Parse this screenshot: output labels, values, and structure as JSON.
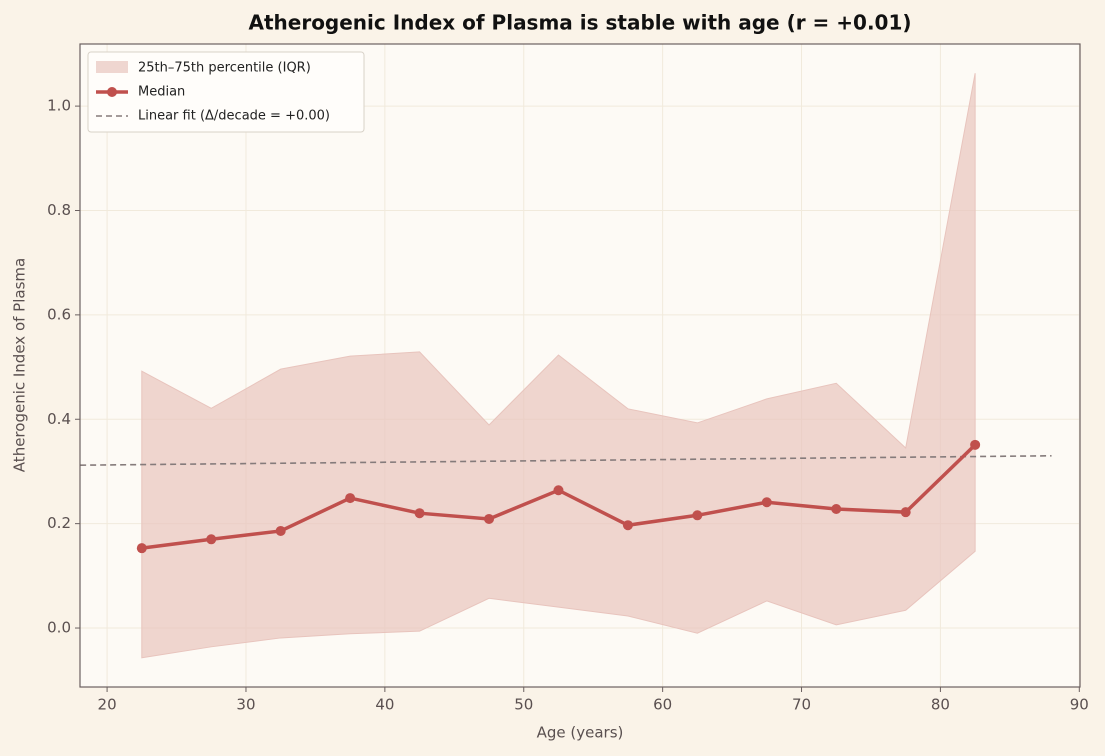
{
  "chart_data": {
    "type": "line",
    "title": "Atherogenic Index of Plasma is stable with age (r = +0.01)",
    "x_label": "Age (years)",
    "y_label": "Atherogenic Index of Plasma",
    "x": [
      22.5,
      27.5,
      32.5,
      37.5,
      42.5,
      47.5,
      52.5,
      57.5,
      62.5,
      67.5,
      72.5,
      77.5,
      82.5
    ],
    "band": {
      "name": "25th–75th percentile (IQR)",
      "color": "#e8c4bd",
      "lower": [
        -0.057,
        -0.036,
        -0.019,
        -0.011,
        -0.006,
        0.057,
        0.04,
        0.023,
        -0.01,
        0.052,
        0.006,
        0.034,
        0.147
      ],
      "upper": [
        0.492,
        0.421,
        0.496,
        0.521,
        0.529,
        0.389,
        0.523,
        0.42,
        0.393,
        0.439,
        0.469,
        0.345,
        1.063
      ]
    },
    "series": [
      {
        "name": "Median",
        "color": "#c0504d",
        "values": [
          0.153,
          0.17,
          0.186,
          0.249,
          0.22,
          0.209,
          0.264,
          0.197,
          0.216,
          0.241,
          0.228,
          0.222,
          0.351
        ]
      }
    ],
    "fit": {
      "name": "Linear fit (Δ/decade = +0.00)",
      "color": "#857b7b",
      "x": [
        18.06,
        88
      ],
      "values": [
        0.312,
        0.33
      ]
    },
    "xlim": [
      18.05,
      90.05
    ],
    "ylim": [
      -0.113,
      1.119
    ],
    "xticks": [
      20,
      30,
      40,
      50,
      60,
      70,
      80,
      90
    ],
    "yticks": [
      {
        "value": 0,
        "label": "0.0"
      },
      0.2,
      0.4,
      0.6,
      0.8,
      {
        "value": 1,
        "label": "1.0"
      }
    ],
    "grid": true,
    "legend": "upper-left"
  }
}
